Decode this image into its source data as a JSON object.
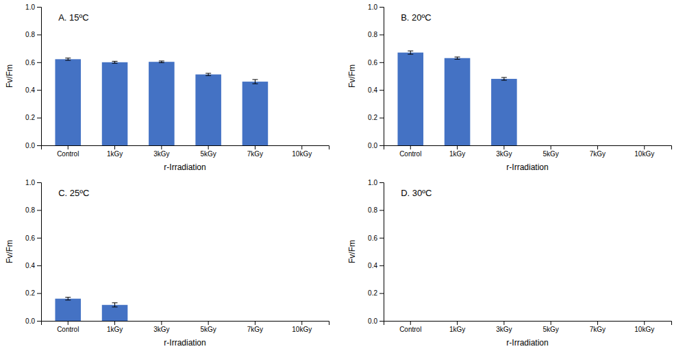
{
  "chart_data": [
    {
      "type": "bar",
      "title": "A. 15ºC",
      "categories": [
        "Control",
        "1kGy",
        "3kGy",
        "5kGy",
        "7kGy",
        "10kGy"
      ],
      "values": [
        0.622,
        0.6,
        0.603,
        0.512,
        0.46,
        0.0
      ],
      "errors": [
        0.008,
        0.007,
        0.006,
        0.008,
        0.015,
        0.0
      ],
      "color": "#4472C4",
      "xlabel": "r-Irradiation",
      "ylabel": "Fv/Fm",
      "ylim": [
        0.0,
        1.0
      ],
      "yticks": [
        {
          "value": 0,
          "label": "0.0"
        },
        0.2,
        0.4,
        0.6,
        0.8,
        {
          "value": 1,
          "label": "1.0"
        }
      ],
      "grid": false
    },
    {
      "type": "bar",
      "title": "B. 20ºC",
      "categories": [
        "Control",
        "1kGy",
        "3kGy",
        "5kGy",
        "7kGy",
        "10kGy"
      ],
      "values": [
        0.67,
        0.63,
        0.48,
        0.0,
        0.0,
        0.0
      ],
      "errors": [
        0.012,
        0.008,
        0.01,
        0.0,
        0.0,
        0.0
      ],
      "color": "#4472C4",
      "xlabel": "r-Irradiation",
      "ylabel": "Fv/Fm",
      "ylim": [
        0.0,
        1.0
      ],
      "yticks": [
        {
          "value": 0,
          "label": "0.0"
        },
        0.2,
        0.4,
        0.6,
        0.8,
        {
          "value": 1,
          "label": "1.0"
        }
      ],
      "grid": false
    },
    {
      "type": "bar",
      "title": "C. 25ºC",
      "categories": [
        "Control",
        "1kGy",
        "3kGy",
        "5kGy",
        "7kGy",
        "10kGy"
      ],
      "values": [
        0.16,
        0.115,
        0.0,
        0.0,
        0.0,
        0.0
      ],
      "errors": [
        0.01,
        0.015,
        0.0,
        0.0,
        0.0,
        0.0
      ],
      "color": "#4472C4",
      "xlabel": "r-Irradiation",
      "ylabel": "Fv/Fm",
      "ylim": [
        0.0,
        1.0
      ],
      "yticks": [
        {
          "value": 0,
          "label": "0.0"
        },
        0.2,
        0.4,
        0.6,
        0.8,
        {
          "value": 1,
          "label": "1.0"
        }
      ],
      "grid": false
    },
    {
      "type": "bar",
      "title": "D. 30ºC",
      "categories": [
        "Control",
        "1kGy",
        "3kGy",
        "5kGy",
        "7kGy",
        "10kGy"
      ],
      "values": [
        0.0,
        0.0,
        0.0,
        0.0,
        0.0,
        0.0
      ],
      "errors": [
        0.0,
        0.0,
        0.0,
        0.0,
        0.0,
        0.0
      ],
      "color": "#4472C4",
      "xlabel": "r-Irradiation",
      "ylabel": "Fv/Fm",
      "ylim": [
        0.0,
        1.0
      ],
      "yticks": [
        {
          "value": 0,
          "label": "0.0"
        },
        0.2,
        0.4,
        0.6,
        0.8,
        {
          "value": 1,
          "label": "1.0"
        }
      ],
      "grid": false
    }
  ]
}
